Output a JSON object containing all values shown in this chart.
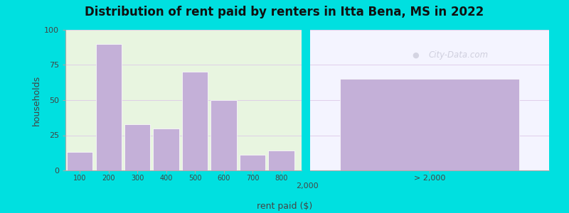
{
  "title": "Distribution of rent paid by renters in Itta Bena, MS in 2022",
  "xlabel": "rent paid ($)",
  "ylabel": "households",
  "bar_categories": [
    100,
    200,
    300,
    400,
    500,
    600,
    700,
    800
  ],
  "bar_values": [
    13,
    90,
    33,
    30,
    70,
    50,
    11,
    14
  ],
  "bar_color": "#c4b0d8",
  "bar_edgecolor": "#ffffff",
  "gt2000_value": 65,
  "gt2000_label": "> 2,000",
  "gt2000_color": "#c4b0d8",
  "ylim": [
    0,
    100
  ],
  "yticks": [
    0,
    25,
    50,
    75,
    100
  ],
  "xtick_labels_left": [
    "100",
    "200",
    "300",
    "400",
    "500",
    "600",
    "700",
    "800"
  ],
  "xtick_2000": "2,000",
  "outer_bg": "#00e0e0",
  "plot_bg_left": "#e8f5e0",
  "plot_bg_right": "#f4f4ff",
  "title_color": "#111111",
  "axis_label_color": "#444444",
  "watermark": "City-Data.com",
  "title_fontsize": 12,
  "axis_label_fontsize": 9,
  "tick_fontsize": 8
}
